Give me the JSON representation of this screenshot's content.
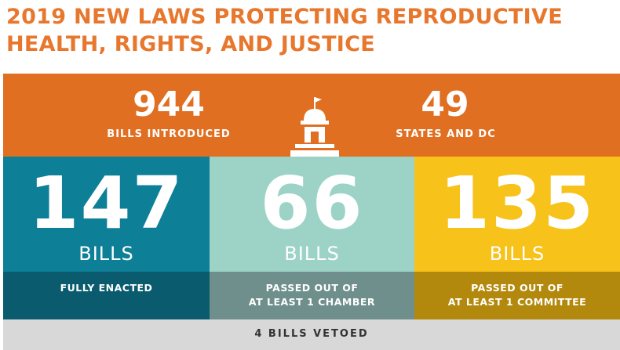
{
  "header": {
    "title_line1": "2019 NEW LAWS PROTECTING REPRODUCTIVE",
    "title_line2": "HEALTH, RIGHTS, AND JUSTICE"
  },
  "top_stats": [
    {
      "value": "944",
      "label": "BILLS INTRODUCED"
    },
    {
      "value": "49",
      "label": "STATES AND DC"
    }
  ],
  "icon": "capitol-building-icon",
  "columns": [
    {
      "value": "147",
      "unit": "BILLS",
      "caption_line1": "FULLY ENACTED",
      "caption_line2": "",
      "color": "#0d7f97",
      "footer_color": "#0a5b6e"
    },
    {
      "value": "66",
      "unit": "BILLS",
      "caption_line1": "PASSED OUT OF",
      "caption_line2": "AT LEAST 1 CHAMBER",
      "color": "#9dd3c7",
      "footer_color": "#6e8f8b"
    },
    {
      "value": "135",
      "unit": "BILLS",
      "caption_line1": "PASSED OUT OF",
      "caption_line2": "AT LEAST 1 COMMITTEE",
      "color": "#f7c21a",
      "footer_color": "#b3890d"
    }
  ],
  "vetoed": "4 BILLS VETOED",
  "colors": {
    "title": "#e8772e",
    "top_band": "#e06f22",
    "veto_bar": "#d8d8d8"
  }
}
